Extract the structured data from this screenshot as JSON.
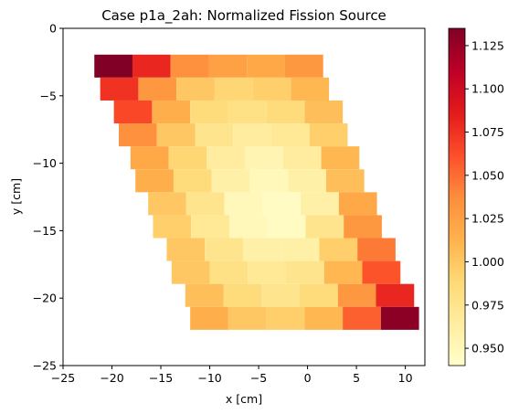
{
  "chart_data": {
    "type": "heatmap",
    "title": "Case p1a_2ah: Normalized Fission Source",
    "xlabel": "x [cm]",
    "ylabel": "y [cm]",
    "xlim": [
      -25,
      12
    ],
    "ylim": [
      -25,
      0
    ],
    "xticks": [
      "−25",
      "−20",
      "−15",
      "−10",
      "−5",
      "0",
      "5",
      "10"
    ],
    "yticks": [
      "0",
      "−5",
      "−10",
      "−15",
      "−20",
      "−25"
    ],
    "grid": false,
    "colorbar": {
      "colormap": "YlOrRd",
      "range": [
        0.94,
        1.135
      ],
      "ticks": [
        "0.950",
        "0.975",
        "1.000",
        "1.025",
        "1.050",
        "1.075",
        "1.100",
        "1.125"
      ]
    },
    "rows": [
      {
        "y": -2.8,
        "x0": -21.8,
        "values": [
          1.135,
          1.08,
          1.035,
          1.025,
          1.02,
          1.03
        ]
      },
      {
        "y": -4.5,
        "x0": -21.2,
        "values": [
          1.075,
          1.03,
          1.0,
          0.99,
          0.995,
          1.01
        ]
      },
      {
        "y": -6.2,
        "x0": -19.8,
        "values": [
          1.065,
          1.015,
          0.985,
          0.98,
          0.985,
          1.005
        ]
      },
      {
        "y": -7.9,
        "x0": -19.3,
        "values": [
          1.035,
          1.0,
          0.975,
          0.965,
          0.97,
          0.995
        ]
      },
      {
        "y": -9.6,
        "x0": -18.1,
        "values": [
          1.02,
          0.99,
          0.965,
          0.955,
          0.965,
          1.01
        ]
      },
      {
        "y": -11.3,
        "x0": -17.6,
        "values": [
          1.015,
          0.985,
          0.96,
          0.95,
          0.96,
          1.005
        ]
      },
      {
        "y": -13.0,
        "x0": -16.3,
        "values": [
          1.0,
          0.975,
          0.95,
          0.945,
          0.96,
          1.02
        ]
      },
      {
        "y": -14.7,
        "x0": -15.8,
        "values": [
          0.995,
          0.97,
          0.95,
          0.945,
          0.975,
          1.03
        ]
      },
      {
        "y": -16.4,
        "x0": -14.4,
        "values": [
          1.0,
          0.975,
          0.96,
          0.96,
          0.995,
          1.045
        ]
      },
      {
        "y": -18.1,
        "x0": -13.9,
        "values": [
          1.0,
          0.98,
          0.97,
          0.975,
          1.01,
          1.06
        ]
      },
      {
        "y": -19.8,
        "x0": -12.5,
        "values": [
          1.005,
          0.985,
          0.975,
          0.985,
          1.03,
          1.08
        ]
      },
      {
        "y": -21.5,
        "x0": -12.0,
        "values": [
          1.015,
          1.0,
          0.995,
          1.01,
          1.055,
          1.13
        ]
      }
    ],
    "row_height": 0.85,
    "cell_width": 3.9
  }
}
